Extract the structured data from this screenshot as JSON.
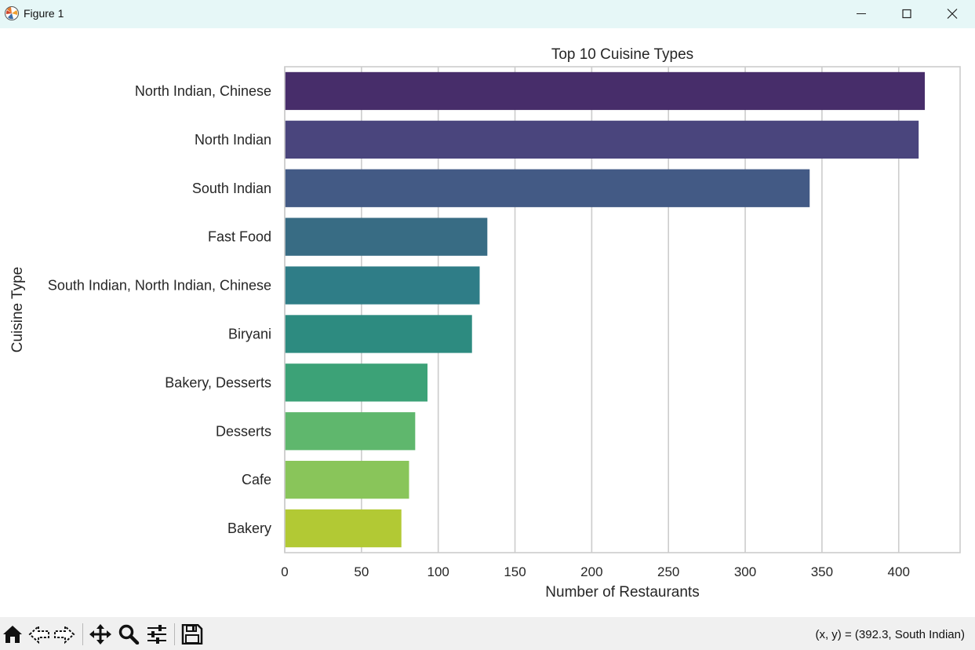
{
  "window": {
    "title": "Figure 1",
    "controls": [
      "minimize",
      "maximize",
      "close"
    ]
  },
  "toolbar": {
    "buttons": [
      {
        "name": "home-icon"
      },
      {
        "name": "back-icon"
      },
      {
        "name": "forward-icon"
      },
      {
        "name": "pan-icon"
      },
      {
        "name": "zoom-icon"
      },
      {
        "name": "configure-subplots-icon"
      },
      {
        "name": "save-icon"
      }
    ],
    "coords": "(x, y) = (392.3, South Indian)"
  },
  "chart_data": {
    "type": "bar",
    "orientation": "horizontal",
    "title": "Top 10 Cuisine Types",
    "xlabel": "Number of Restaurants",
    "ylabel": "Cuisine Type",
    "xlim": [
      0,
      440
    ],
    "xticks": [
      0,
      50,
      100,
      150,
      200,
      250,
      300,
      350,
      400
    ],
    "grid": "x",
    "categories": [
      "North Indian, Chinese",
      "North Indian",
      "South Indian",
      "Fast Food",
      "South Indian, North Indian, Chinese",
      "Biryani",
      "Bakery, Desserts",
      "Desserts",
      "Cafe",
      "Bakery"
    ],
    "values": [
      417,
      413,
      342,
      132,
      127,
      122,
      93,
      85,
      81,
      76
    ],
    "colors": [
      "#472d6a",
      "#4a457d",
      "#435a85",
      "#386c84",
      "#2f7d87",
      "#2d8b80",
      "#3ca277",
      "#5fb76d",
      "#89c55a",
      "#b2c934"
    ]
  }
}
